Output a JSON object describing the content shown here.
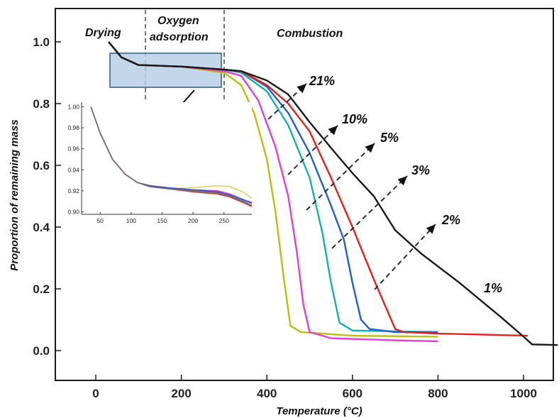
{
  "chart_data": {
    "type": "line",
    "xlabel": "Temperature (°C)",
    "ylabel": "Proportion of remaining mass",
    "xlim": [
      -100,
      1080
    ],
    "ylim": [
      -0.09,
      1.1
    ],
    "x_ticks": [
      0,
      200,
      400,
      600,
      800,
      1000
    ],
    "y_ticks": [
      0.0,
      0.2,
      0.4,
      0.6,
      0.8,
      1.0
    ],
    "x_tick_labels": [
      "0",
      "200",
      "400",
      "600",
      "800",
      "1000"
    ],
    "y_tick_labels": [
      "0.0",
      "0.2",
      "0.4",
      "0.6",
      "0.8",
      "1.0"
    ],
    "stages": [
      "Drying",
      "Oxygen adsorption",
      "Combustion"
    ],
    "stage_boundaries": [
      120,
      300
    ],
    "series": [
      {
        "name": "1%",
        "color": "#1a1a1a",
        "points": [
          [
            30,
            1.0
          ],
          [
            60,
            0.95
          ],
          [
            100,
            0.925
          ],
          [
            200,
            0.92
          ],
          [
            300,
            0.91
          ],
          [
            340,
            0.905
          ],
          [
            400,
            0.875
          ],
          [
            450,
            0.83
          ],
          [
            500,
            0.74
          ],
          [
            560,
            0.64
          ],
          [
            600,
            0.575
          ],
          [
            650,
            0.5
          ],
          [
            700,
            0.39
          ],
          [
            760,
            0.315
          ],
          [
            850,
            0.22
          ],
          [
            950,
            0.105
          ],
          [
            1000,
            0.045
          ],
          [
            1020,
            0.02
          ],
          [
            1080,
            0.018
          ]
        ]
      },
      {
        "name": "2%",
        "color": "#e8201a",
        "points": [
          [
            30,
            1.0
          ],
          [
            60,
            0.95
          ],
          [
            100,
            0.925
          ],
          [
            200,
            0.92
          ],
          [
            300,
            0.91
          ],
          [
            340,
            0.905
          ],
          [
            400,
            0.86
          ],
          [
            450,
            0.8
          ],
          [
            500,
            0.71
          ],
          [
            550,
            0.56
          ],
          [
            600,
            0.4
          ],
          [
            650,
            0.23
          ],
          [
            700,
            0.07
          ],
          [
            720,
            0.06
          ],
          [
            800,
            0.055
          ],
          [
            900,
            0.052
          ],
          [
            1010,
            0.048
          ]
        ]
      },
      {
        "name": "3%",
        "color": "#1f5fd6",
        "points": [
          [
            30,
            1.0
          ],
          [
            60,
            0.95
          ],
          [
            100,
            0.925
          ],
          [
            200,
            0.92
          ],
          [
            300,
            0.91
          ],
          [
            340,
            0.905
          ],
          [
            400,
            0.855
          ],
          [
            450,
            0.77
          ],
          [
            500,
            0.64
          ],
          [
            550,
            0.47
          ],
          [
            580,
            0.36
          ],
          [
            600,
            0.22
          ],
          [
            620,
            0.1
          ],
          [
            640,
            0.07
          ],
          [
            700,
            0.06
          ],
          [
            800,
            0.06
          ]
        ]
      },
      {
        "name": "5%",
        "color": "#12b0b0",
        "points": [
          [
            30,
            1.0
          ],
          [
            60,
            0.95
          ],
          [
            100,
            0.925
          ],
          [
            200,
            0.92
          ],
          [
            300,
            0.91
          ],
          [
            340,
            0.9
          ],
          [
            400,
            0.84
          ],
          [
            450,
            0.73
          ],
          [
            500,
            0.56
          ],
          [
            530,
            0.38
          ],
          [
            550,
            0.22
          ],
          [
            570,
            0.09
          ],
          [
            600,
            0.065
          ],
          [
            800,
            0.06
          ]
        ]
      },
      {
        "name": "10%",
        "color": "#e040d0",
        "points": [
          [
            30,
            1.0
          ],
          [
            60,
            0.95
          ],
          [
            100,
            0.925
          ],
          [
            200,
            0.92
          ],
          [
            300,
            0.905
          ],
          [
            340,
            0.89
          ],
          [
            380,
            0.81
          ],
          [
            420,
            0.66
          ],
          [
            450,
            0.5
          ],
          [
            470,
            0.32
          ],
          [
            485,
            0.15
          ],
          [
            500,
            0.06
          ],
          [
            550,
            0.04
          ],
          [
            700,
            0.033
          ],
          [
            800,
            0.03
          ]
        ]
      },
      {
        "name": "21%",
        "color": "#b8c010",
        "points": [
          [
            30,
            1.0
          ],
          [
            60,
            0.95
          ],
          [
            100,
            0.925
          ],
          [
            200,
            0.92
          ],
          [
            300,
            0.9
          ],
          [
            340,
            0.86
          ],
          [
            370,
            0.77
          ],
          [
            400,
            0.62
          ],
          [
            420,
            0.45
          ],
          [
            440,
            0.23
          ],
          [
            455,
            0.08
          ],
          [
            480,
            0.06
          ],
          [
            600,
            0.048
          ],
          [
            800,
            0.045
          ]
        ]
      }
    ],
    "arrows_label_order": [
      "21%",
      "10%",
      "5%",
      "3%",
      "2%",
      "1%"
    ],
    "inset": {
      "xlim": [
        20,
        295
      ],
      "ylim": [
        0.899,
        1.001
      ],
      "x_ticks": [
        50,
        100,
        150,
        200,
        250
      ],
      "y_ticks": [
        0.9,
        0.92,
        0.94,
        0.96,
        0.98,
        1.0
      ],
      "x_tick_labels": [
        "50",
        "100",
        "150",
        "200",
        "250"
      ],
      "y_tick_labels": [
        "0.90",
        "0.92",
        "0.94",
        "0.96",
        "0.98",
        "1.00"
      ],
      "zoom_region": {
        "x": [
          30,
          295
        ],
        "y": [
          0.85,
          0.96
        ]
      },
      "series": [
        {
          "name": "21%",
          "color": "#d8d060",
          "points": [
            [
              35,
              1.0
            ],
            [
              50,
              0.975
            ],
            [
              70,
              0.95
            ],
            [
              90,
              0.936
            ],
            [
              110,
              0.928
            ],
            [
              130,
              0.924
            ],
            [
              160,
              0.922
            ],
            [
              200,
              0.923
            ],
            [
              240,
              0.925
            ],
            [
              260,
              0.924
            ],
            [
              280,
              0.919
            ],
            [
              295,
              0.913
            ]
          ]
        },
        {
          "name": "10%",
          "color": "#e040d0",
          "points": [
            [
              35,
              1.0
            ],
            [
              50,
              0.975
            ],
            [
              70,
              0.95
            ],
            [
              90,
              0.936
            ],
            [
              110,
              0.928
            ],
            [
              130,
              0.924
            ],
            [
              160,
              0.922
            ],
            [
              200,
              0.921
            ],
            [
              240,
              0.92
            ],
            [
              260,
              0.917
            ],
            [
              280,
              0.912
            ],
            [
              295,
              0.909
            ]
          ]
        },
        {
          "name": "5%",
          "color": "#30a0c8",
          "points": [
            [
              35,
              1.0
            ],
            [
              50,
              0.975
            ],
            [
              70,
              0.95
            ],
            [
              90,
              0.936
            ],
            [
              110,
              0.928
            ],
            [
              130,
              0.924
            ],
            [
              160,
              0.922
            ],
            [
              200,
              0.92
            ],
            [
              240,
              0.918
            ],
            [
              260,
              0.915
            ],
            [
              280,
              0.911
            ],
            [
              295,
              0.906
            ]
          ]
        },
        {
          "name": "3%",
          "color": "#3050d0",
          "points": [
            [
              35,
              1.0
            ],
            [
              50,
              0.975
            ],
            [
              70,
              0.95
            ],
            [
              90,
              0.936
            ],
            [
              110,
              0.928
            ],
            [
              130,
              0.925
            ],
            [
              160,
              0.923
            ],
            [
              200,
              0.921
            ],
            [
              240,
              0.919
            ],
            [
              260,
              0.916
            ],
            [
              280,
              0.912
            ],
            [
              295,
              0.908
            ]
          ]
        },
        {
          "name": "2%",
          "color": "#e03030",
          "points": [
            [
              35,
              1.0
            ],
            [
              50,
              0.975
            ],
            [
              70,
              0.95
            ],
            [
              90,
              0.936
            ],
            [
              110,
              0.928
            ],
            [
              130,
              0.924
            ],
            [
              160,
              0.922
            ],
            [
              200,
              0.919
            ],
            [
              240,
              0.917
            ],
            [
              260,
              0.914
            ],
            [
              280,
              0.909
            ],
            [
              295,
              0.905
            ]
          ]
        },
        {
          "name": "1%",
          "color": "#707070",
          "points": [
            [
              35,
              1.0
            ],
            [
              50,
              0.975
            ],
            [
              70,
              0.95
            ],
            [
              90,
              0.936
            ],
            [
              110,
              0.928
            ],
            [
              130,
              0.924
            ],
            [
              160,
              0.922
            ],
            [
              200,
              0.92
            ],
            [
              240,
              0.918
            ],
            [
              260,
              0.915
            ],
            [
              280,
              0.91
            ],
            [
              295,
              0.906
            ]
          ]
        }
      ]
    }
  }
}
